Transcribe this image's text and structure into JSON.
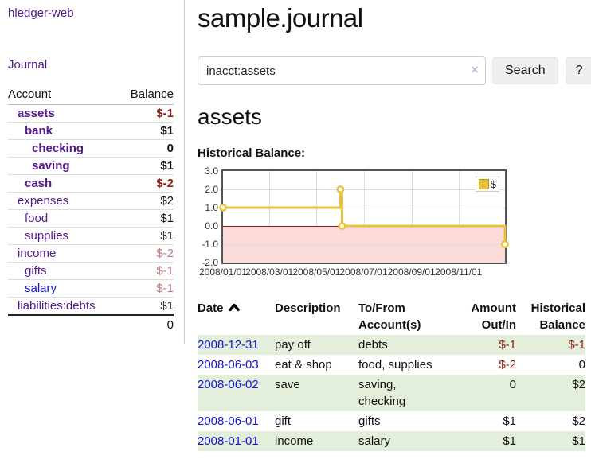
{
  "app": {
    "title": "hledger-web"
  },
  "nav": {
    "journal_label": "Journal"
  },
  "sidebar": {
    "columns": {
      "account": "Account",
      "balance": "Balance"
    },
    "accounts": [
      {
        "name": "assets",
        "depth": 1,
        "bold": true,
        "balance": "$-1",
        "balance_style": "neg"
      },
      {
        "name": "bank",
        "depth": 2,
        "bold": true,
        "balance": "$1",
        "balance_style": "pos"
      },
      {
        "name": "checking",
        "depth": 3,
        "bold": true,
        "balance": "0",
        "balance_style": "pos"
      },
      {
        "name": "saving",
        "depth": 3,
        "bold": true,
        "balance": "$1",
        "balance_style": "pos"
      },
      {
        "name": "cash",
        "depth": 2,
        "bold": true,
        "balance": "$-2",
        "balance_style": "neg"
      },
      {
        "name": "expenses",
        "depth": 1,
        "bold": false,
        "balance": "$2",
        "balance_style": "pos"
      },
      {
        "name": "food",
        "depth": 2,
        "bold": false,
        "balance": "$1",
        "balance_style": "pos"
      },
      {
        "name": "supplies",
        "depth": 2,
        "bold": false,
        "balance": "$1",
        "balance_style": "pos"
      },
      {
        "name": "income",
        "depth": 1,
        "bold": false,
        "balance": "$-2",
        "balance_style": "neg-light"
      },
      {
        "name": "gifts",
        "depth": 2,
        "bold": false,
        "balance": "$-1",
        "balance_style": "neg-light"
      },
      {
        "name": "salary",
        "depth": 2,
        "bold": false,
        "variant": "blue",
        "balance": "$-1",
        "balance_style": "neg-light"
      },
      {
        "name": "liabilities:debts",
        "depth": 1,
        "bold": false,
        "balance": "$1",
        "balance_style": "pos"
      }
    ],
    "total": "0"
  },
  "header": {
    "title": "sample.journal"
  },
  "search": {
    "value": "inacct:assets",
    "clear_icon": "×",
    "search_button": "Search",
    "help_button": "?"
  },
  "account_page": {
    "heading": "assets",
    "chart_title": "Historical Balance:"
  },
  "colors": {
    "link_purple": "#551a8b",
    "link_blue": "#1414d2",
    "negative_red": "#8a1f15",
    "negative_light_red": "#c07a7a",
    "row_green": "#e3efdb",
    "series_gold": "#e7c23f",
    "negative_region_pink": "#fbdada",
    "zero_line_red": "#a01010"
  },
  "chart_data": {
    "type": "line",
    "style": "step-with-markers",
    "legend": [
      "$"
    ],
    "legend_position": "top-right",
    "grid": true,
    "xlim": [
      "2008-01-01",
      "2008-12-31"
    ],
    "ylim": [
      -2.0,
      3.0
    ],
    "yticks": [
      3.0,
      2.0,
      1.0,
      0.0,
      -1.0,
      -2.0
    ],
    "ytick_labels": [
      "3.0",
      "2.0",
      "1.0",
      "0.0",
      "-1.0",
      "-2.0"
    ],
    "xticks": [
      "2008-01-01",
      "2008-03-01",
      "2008-05-01",
      "2008-07-01",
      "2008-09-01",
      "2008-11-01"
    ],
    "xtick_labels": [
      "2008/01/01",
      "2008/03/01",
      "2008/05/01",
      "2008/07/01",
      "2008/09/01",
      "2008/11/01"
    ],
    "series": [
      {
        "name": "$",
        "points": [
          {
            "x": "2008-01-01",
            "y": 1
          },
          {
            "x": "2008-06-01",
            "y": 2
          },
          {
            "x": "2008-06-03",
            "y": 0
          },
          {
            "x": "2008-12-31",
            "y": -1
          }
        ]
      }
    ]
  },
  "register": {
    "columns": [
      "Date",
      "Description",
      "To/From Account(s)",
      "Amount Out/In",
      "Historical Balance"
    ],
    "rows": [
      {
        "date": "2008-12-31",
        "description": "pay off",
        "accounts": "debts",
        "amount": "$-1",
        "amount_neg": true,
        "balance": "$-1",
        "balance_neg": true,
        "striped": true
      },
      {
        "date": "2008-06-03",
        "description": "eat & shop",
        "accounts": "food, supplies",
        "amount": "$-2",
        "amount_neg": true,
        "balance": "0",
        "balance_neg": false,
        "striped": false
      },
      {
        "date": "2008-06-02",
        "description": "save",
        "accounts": "saving, checking",
        "amount": "0",
        "amount_neg": false,
        "balance": "$2",
        "balance_neg": false,
        "striped": true
      },
      {
        "date": "2008-06-01",
        "description": "gift",
        "accounts": "gifts",
        "amount": "$1",
        "amount_neg": false,
        "balance": "$2",
        "balance_neg": false,
        "striped": false
      },
      {
        "date": "2008-01-01",
        "description": "income",
        "accounts": "salary",
        "amount": "$1",
        "amount_neg": false,
        "balance": "$1",
        "balance_neg": false,
        "striped": true
      }
    ]
  }
}
